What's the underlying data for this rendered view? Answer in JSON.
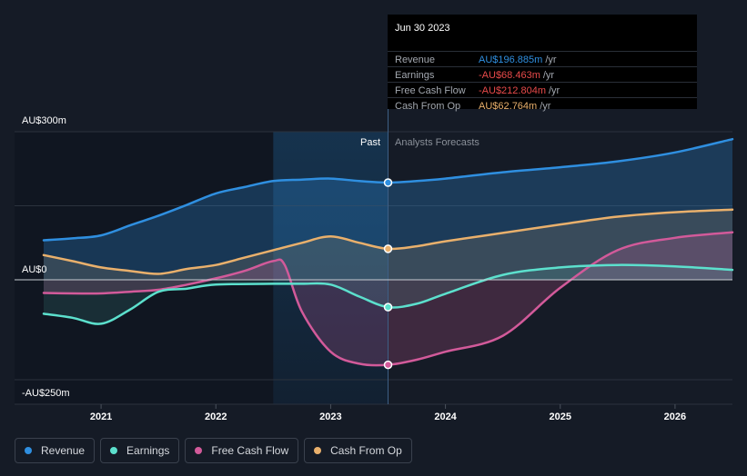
{
  "chart_data": {
    "type": "area",
    "title": "",
    "y_axis_labels": {
      "top": "AU$300m",
      "zero": "AU$0",
      "bottom": "-AU$250m"
    },
    "ylim": [
      -250,
      300
    ],
    "x_ticks": [
      "2021",
      "2022",
      "2023",
      "2024",
      "2025",
      "2026"
    ],
    "x_range": [
      2020.5,
      2026.5
    ],
    "past_label": "Past",
    "forecast_label": "Analysts Forecasts",
    "forecast_start": 2023.5,
    "past_shade_start": 2022.5,
    "series": [
      {
        "name": "Revenue",
        "color": "#2f8fe0",
        "points": [
          [
            2020.5,
            80
          ],
          [
            2020.75,
            84
          ],
          [
            2021,
            90
          ],
          [
            2021.25,
            110
          ],
          [
            2021.5,
            130
          ],
          [
            2021.75,
            152
          ],
          [
            2022,
            175
          ],
          [
            2022.25,
            188
          ],
          [
            2022.5,
            200
          ],
          [
            2022.75,
            203
          ],
          [
            2023,
            205
          ],
          [
            2023.25,
            200
          ],
          [
            2023.5,
            196.885
          ],
          [
            2023.75,
            200
          ],
          [
            2024,
            205
          ],
          [
            2024.5,
            218
          ],
          [
            2025,
            228
          ],
          [
            2025.5,
            240
          ],
          [
            2026,
            258
          ],
          [
            2026.5,
            285
          ]
        ]
      },
      {
        "name": "Earnings",
        "color": "#5ce0cd",
        "points": [
          [
            2020.5,
            -85
          ],
          [
            2020.75,
            -95
          ],
          [
            2021,
            -110
          ],
          [
            2021.25,
            -75
          ],
          [
            2021.5,
            -30
          ],
          [
            2021.75,
            -22
          ],
          [
            2022,
            -12
          ],
          [
            2022.5,
            -10
          ],
          [
            2022.75,
            -10
          ],
          [
            2023,
            -12
          ],
          [
            2023.25,
            -42
          ],
          [
            2023.5,
            -68.463
          ],
          [
            2023.75,
            -60
          ],
          [
            2024,
            -35
          ],
          [
            2024.5,
            10
          ],
          [
            2025,
            25
          ],
          [
            2025.5,
            30
          ],
          [
            2026,
            27
          ],
          [
            2026.5,
            20
          ]
        ]
      },
      {
        "name": "Free Cash Flow",
        "color": "#d25a9a",
        "points": [
          [
            2020.5,
            -33
          ],
          [
            2020.75,
            -34
          ],
          [
            2021,
            -34
          ],
          [
            2021.25,
            -30
          ],
          [
            2021.5,
            -25
          ],
          [
            2021.75,
            -12
          ],
          [
            2022,
            3
          ],
          [
            2022.25,
            18
          ],
          [
            2022.5,
            38
          ],
          [
            2022.6,
            30
          ],
          [
            2022.75,
            -80
          ],
          [
            2023,
            -180
          ],
          [
            2023.25,
            -210
          ],
          [
            2023.5,
            -212.804
          ],
          [
            2023.75,
            -200
          ],
          [
            2024,
            -180
          ],
          [
            2024.5,
            -140
          ],
          [
            2025,
            -20
          ],
          [
            2025.5,
            60
          ],
          [
            2026,
            85
          ],
          [
            2026.5,
            96
          ]
        ]
      },
      {
        "name": "Cash From Op",
        "color": "#e9b06c",
        "points": [
          [
            2020.5,
            50
          ],
          [
            2020.75,
            38
          ],
          [
            2021,
            25
          ],
          [
            2021.25,
            18
          ],
          [
            2021.5,
            12
          ],
          [
            2021.75,
            22
          ],
          [
            2022,
            30
          ],
          [
            2022.25,
            45
          ],
          [
            2022.5,
            60
          ],
          [
            2022.75,
            75
          ],
          [
            2023,
            88
          ],
          [
            2023.25,
            75
          ],
          [
            2023.5,
            62.764
          ],
          [
            2023.75,
            68
          ],
          [
            2024,
            78
          ],
          [
            2024.5,
            95
          ],
          [
            2025,
            112
          ],
          [
            2025.5,
            128
          ],
          [
            2026,
            137
          ],
          [
            2026.5,
            142
          ]
        ]
      }
    ]
  },
  "tooltip": {
    "date": "Jun 30 2023",
    "rows": [
      {
        "label": "Revenue",
        "value": "AU$196.885m",
        "unit": "/yr",
        "color": "#2f8fe0"
      },
      {
        "label": "Earnings",
        "value": "-AU$68.463m",
        "unit": "/yr",
        "color": "#e84a4a"
      },
      {
        "label": "Free Cash Flow",
        "value": "-AU$212.804m",
        "unit": "/yr",
        "color": "#e84a4a"
      },
      {
        "label": "Cash From Op",
        "value": "AU$62.764m",
        "unit": "/yr",
        "color": "#e9b06c"
      }
    ]
  },
  "legend": [
    {
      "label": "Revenue",
      "color": "#2f8fe0"
    },
    {
      "label": "Earnings",
      "color": "#5ce0cd"
    },
    {
      "label": "Free Cash Flow",
      "color": "#d25a9a"
    },
    {
      "label": "Cash From Op",
      "color": "#e9b06c"
    }
  ]
}
